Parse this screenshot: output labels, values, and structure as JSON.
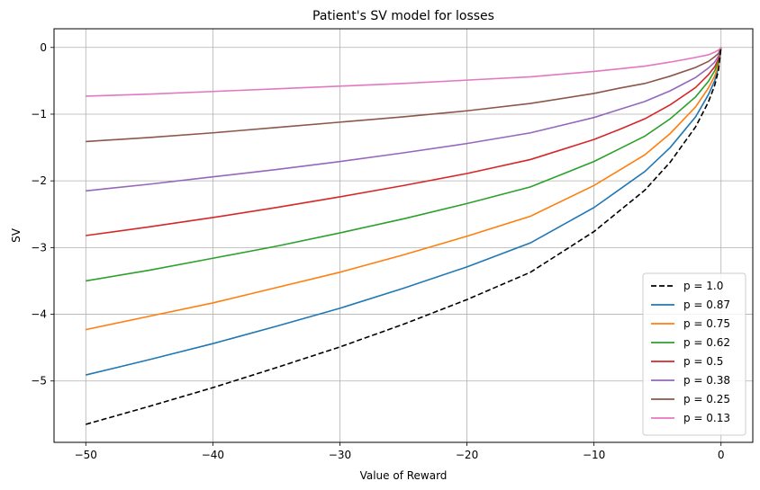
{
  "chart_data": {
    "type": "line",
    "title": "Patient's SV model for losses",
    "xlabel": "Value of Reward",
    "ylabel": "SV",
    "xlim": [
      -52.5,
      2.5
    ],
    "ylim": [
      -5.92,
      0.28
    ],
    "x_ticks": [
      -50,
      -40,
      -30,
      -20,
      -10,
      0
    ],
    "x_tick_labels": [
      "−50",
      "−40",
      "−30",
      "−20",
      "−10",
      "0"
    ],
    "y_ticks": [
      0,
      -1,
      -2,
      -3,
      -4,
      -5
    ],
    "y_tick_labels": [
      "0",
      "−1",
      "−2",
      "−3",
      "−4",
      "−5"
    ],
    "grid": true,
    "legend_position": "lower-right",
    "x": [
      -50,
      -45,
      -40,
      -35,
      -30,
      -25,
      -20,
      -15,
      -10,
      -8,
      -6,
      -4,
      -2,
      -1,
      -0.5,
      -0.2,
      0
    ],
    "series": [
      {
        "name": "p = 1.0",
        "color": "#000000",
        "dash": true,
        "values": [
          -5.65,
          -5.38,
          -5.1,
          -4.8,
          -4.49,
          -4.15,
          -3.78,
          -3.37,
          -2.76,
          -2.45,
          -2.14,
          -1.72,
          -1.19,
          -0.82,
          -0.57,
          -0.34,
          0
        ]
      },
      {
        "name": "p = 0.87",
        "color": "#1f77b4",
        "values": [
          -4.91,
          -4.68,
          -4.44,
          -4.18,
          -3.91,
          -3.61,
          -3.29,
          -2.93,
          -2.4,
          -2.13,
          -1.86,
          -1.5,
          -1.04,
          -0.71,
          -0.5,
          -0.3,
          0
        ]
      },
      {
        "name": "p = 0.75",
        "color": "#ff7f0e",
        "values": [
          -4.23,
          -4.03,
          -3.83,
          -3.6,
          -3.37,
          -3.11,
          -2.83,
          -2.53,
          -2.07,
          -1.84,
          -1.61,
          -1.29,
          -0.89,
          -0.61,
          -0.43,
          -0.26,
          0
        ]
      },
      {
        "name": "p = 0.62",
        "color": "#2ca02c",
        "values": [
          -3.5,
          -3.34,
          -3.16,
          -2.98,
          -2.78,
          -2.57,
          -2.34,
          -2.09,
          -1.71,
          -1.52,
          -1.33,
          -1.07,
          -0.74,
          -0.51,
          -0.35,
          -0.21,
          0
        ]
      },
      {
        "name": "p = 0.5",
        "color": "#d62728",
        "values": [
          -2.82,
          -2.69,
          -2.55,
          -2.4,
          -2.24,
          -2.07,
          -1.89,
          -1.68,
          -1.38,
          -1.23,
          -1.07,
          -0.86,
          -0.6,
          -0.41,
          -0.29,
          -0.17,
          0
        ]
      },
      {
        "name": "p = 0.38",
        "color": "#9467bd",
        "values": [
          -2.15,
          -2.05,
          -1.94,
          -1.83,
          -1.71,
          -1.58,
          -1.44,
          -1.28,
          -1.05,
          -0.93,
          -0.81,
          -0.65,
          -0.45,
          -0.31,
          -0.22,
          -0.13,
          0
        ]
      },
      {
        "name": "p = 0.25",
        "color": "#8c564b",
        "values": [
          -1.41,
          -1.35,
          -1.28,
          -1.2,
          -1.12,
          -1.04,
          -0.95,
          -0.84,
          -0.69,
          -0.61,
          -0.54,
          -0.43,
          -0.3,
          -0.21,
          -0.14,
          -0.09,
          0
        ]
      },
      {
        "name": "p = 0.13",
        "color": "#e377c2",
        "values": [
          -0.73,
          -0.7,
          -0.66,
          -0.62,
          -0.58,
          -0.54,
          -0.49,
          -0.44,
          -0.36,
          -0.32,
          -0.28,
          -0.22,
          -0.15,
          -0.11,
          -0.07,
          -0.04,
          0
        ]
      }
    ]
  }
}
